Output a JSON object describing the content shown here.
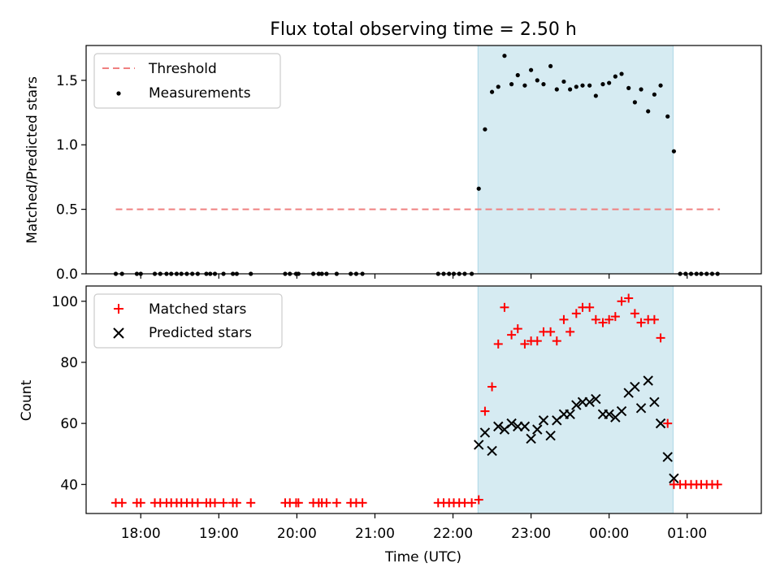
{
  "figure": {
    "title": "Flux total observing time = 2.50 h",
    "xlabel": "Time (UTC)"
  },
  "colors": {
    "threshold": "#f08080",
    "measurement": "#000000",
    "matched": "#ff0000",
    "predicted": "#000000",
    "span": "#add8e6"
  },
  "chart_data": [
    {
      "type": "scatter",
      "ylabel": "Matched/Predicted stars",
      "x_unit": "hours since 17:00 UTC",
      "xlim": [
        17.3,
        25.95
      ],
      "ylim": [
        0,
        1.77
      ],
      "yticks": [
        0.0,
        0.5,
        1.0,
        1.5
      ],
      "yticklabels": [
        "0.0",
        "0.5",
        "1.0",
        "1.5"
      ],
      "xticks_shown": false,
      "legend": {
        "location": "upper-left",
        "entries": [
          "Threshold",
          "Measurements"
        ]
      },
      "shaded_span": [
        22.32,
        24.82
      ],
      "series": [
        {
          "name": "Threshold",
          "kind": "line",
          "x": [
            17.68,
            25.42
          ],
          "y": [
            0.5,
            0.5
          ]
        },
        {
          "name": "Measurements",
          "kind": "scatter",
          "x": [
            17.68,
            17.76,
            17.95,
            18.0,
            18.18,
            18.25,
            18.33,
            18.39,
            18.46,
            18.52,
            18.59,
            18.66,
            18.73,
            18.84,
            18.89,
            18.95,
            19.06,
            19.18,
            19.23,
            19.41,
            19.85,
            19.91,
            19.99,
            20.02,
            20.21,
            20.28,
            20.32,
            20.38,
            20.51,
            20.69,
            20.76,
            20.84,
            21.81,
            21.88,
            21.95,
            22.01,
            22.08,
            22.15,
            22.24,
            22.33,
            22.41,
            22.5,
            22.58,
            22.66,
            22.75,
            22.83,
            22.92,
            23.0,
            23.08,
            23.16,
            23.25,
            23.33,
            23.42,
            23.5,
            23.58,
            23.66,
            23.75,
            23.83,
            23.92,
            24.0,
            24.08,
            24.16,
            24.25,
            24.33,
            24.41,
            24.5,
            24.58,
            24.66,
            24.75,
            24.83,
            24.91,
            24.98,
            25.05,
            25.12,
            25.18,
            25.25,
            25.32,
            25.39
          ],
          "y": [
            0,
            0,
            0,
            0,
            0,
            0,
            0,
            0,
            0,
            0,
            0,
            0,
            0,
            0,
            0,
            0,
            0,
            0,
            0,
            0,
            0,
            0,
            0,
            0,
            0,
            0,
            0,
            0,
            0,
            0,
            0,
            0,
            0,
            0,
            0,
            0,
            0,
            0,
            0,
            0.66,
            1.12,
            1.41,
            1.45,
            1.69,
            1.47,
            1.54,
            1.46,
            1.58,
            1.5,
            1.47,
            1.61,
            1.43,
            1.49,
            1.43,
            1.45,
            1.46,
            1.46,
            1.38,
            1.47,
            1.48,
            1.53,
            1.55,
            1.44,
            1.33,
            1.43,
            1.26,
            1.39,
            1.46,
            1.22,
            0.95,
            0,
            0,
            0,
            0,
            0,
            0,
            0,
            0
          ]
        }
      ]
    },
    {
      "type": "scatter",
      "ylabel": "Count",
      "xlabel": "Time (UTC)",
      "x_unit": "hours since 17:00 UTC",
      "xlim": [
        17.3,
        25.95
      ],
      "ylim": [
        30.5,
        105
      ],
      "yticks": [
        40,
        60,
        80,
        100
      ],
      "yticklabels": [
        "40",
        "60",
        "80",
        "100"
      ],
      "xticks": [
        18,
        19,
        20,
        21,
        22,
        23,
        24,
        25
      ],
      "xticklabels": [
        "18:00",
        "19:00",
        "20:00",
        "21:00",
        "22:00",
        "23:00",
        "00:00",
        "01:00"
      ],
      "legend": {
        "location": "upper-left",
        "entries": [
          "Matched stars",
          "Predicted stars"
        ]
      },
      "shaded_span": [
        22.32,
        24.82
      ],
      "series": [
        {
          "name": "Matched stars",
          "marker": "plus",
          "x": [
            17.68,
            17.76,
            17.95,
            18.0,
            18.18,
            18.25,
            18.33,
            18.39,
            18.46,
            18.52,
            18.59,
            18.66,
            18.73,
            18.84,
            18.89,
            18.95,
            19.06,
            19.18,
            19.23,
            19.41,
            19.85,
            19.91,
            19.99,
            20.02,
            20.21,
            20.28,
            20.32,
            20.38,
            20.51,
            20.69,
            20.76,
            20.84,
            21.81,
            21.88,
            21.95,
            22.01,
            22.08,
            22.15,
            22.24,
            22.33,
            22.41,
            22.5,
            22.58,
            22.66,
            22.75,
            22.83,
            22.92,
            23.0,
            23.08,
            23.16,
            23.25,
            23.33,
            23.42,
            23.5,
            23.58,
            23.66,
            23.75,
            23.83,
            23.92,
            24.0,
            24.08,
            24.16,
            24.25,
            24.33,
            24.41,
            24.5,
            24.58,
            24.66,
            24.75,
            24.83,
            24.91,
            24.98,
            25.05,
            25.12,
            25.18,
            25.25,
            25.32,
            25.39
          ],
          "y": [
            34,
            34,
            34,
            34,
            34,
            34,
            34,
            34,
            34,
            34,
            34,
            34,
            34,
            34,
            34,
            34,
            34,
            34,
            34,
            34,
            34,
            34,
            34,
            34,
            34,
            34,
            34,
            34,
            34,
            34,
            34,
            34,
            34,
            34,
            34,
            34,
            34,
            34,
            34,
            35,
            64,
            72,
            86,
            98,
            89,
            91,
            86,
            87,
            87,
            90,
            90,
            87,
            94,
            90,
            96,
            98,
            98,
            94,
            93,
            94,
            95,
            100,
            101,
            96,
            93,
            94,
            94,
            88,
            60,
            40,
            40,
            40,
            40,
            40,
            40,
            40,
            40,
            40
          ]
        },
        {
          "name": "Predicted stars",
          "marker": "x",
          "x": [
            22.33,
            22.41,
            22.5,
            22.58,
            22.66,
            22.75,
            22.83,
            22.92,
            23.0,
            23.08,
            23.16,
            23.25,
            23.33,
            23.42,
            23.5,
            23.58,
            23.66,
            23.75,
            23.83,
            23.92,
            24.0,
            24.08,
            24.16,
            24.25,
            24.33,
            24.41,
            24.5,
            24.58,
            24.66,
            24.75,
            24.83
          ],
          "y": [
            53,
            57,
            51,
            59,
            58,
            60,
            59,
            59,
            55,
            58,
            61,
            56,
            61,
            63,
            63,
            66,
            67,
            67,
            68,
            63,
            63,
            62,
            64,
            70,
            72,
            65,
            74,
            67,
            60,
            49,
            42
          ]
        }
      ]
    }
  ]
}
